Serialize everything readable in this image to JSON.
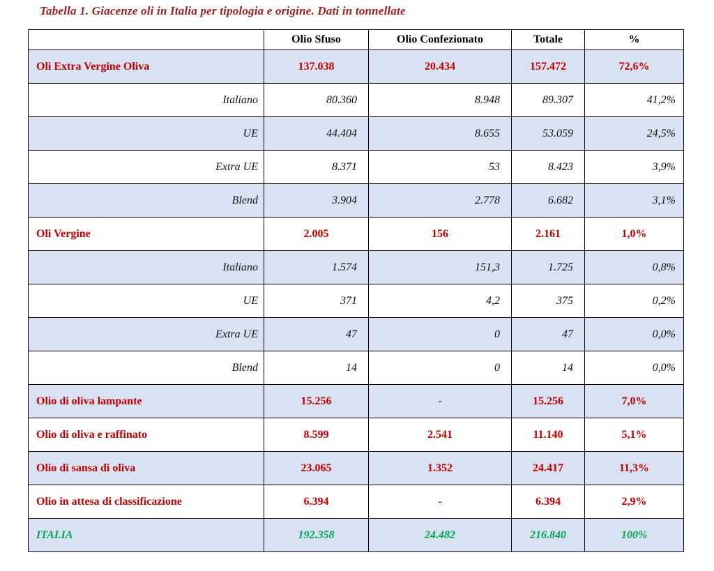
{
  "page": {
    "title": "Tabella 1. Giacenze oli in Italia per tipologia e origine. Dati in tonnellate"
  },
  "colors": {
    "title_red": "#a02020",
    "category_red": "#c00000",
    "total_green": "#00a651",
    "shaded_row_blue": "#d9e2f3",
    "border_black": "#000000"
  },
  "table": {
    "headers": {
      "label": "",
      "sfuso": "Olio Sfuso",
      "confezionato": "Olio Confezionato",
      "totale": "Totale",
      "percent": "%"
    },
    "rows": [
      {
        "type": "main",
        "label": "Oli Extra Vergine Oliva",
        "sfuso": "137.038",
        "confezionato": "20.434",
        "totale": "157.472",
        "percent": "72,6%"
      },
      {
        "type": "sub",
        "label": "Italiano",
        "sfuso": "80.360",
        "confezionato": "8.948",
        "totale": "89.307",
        "percent": "41,2%"
      },
      {
        "type": "sub",
        "label": "UE",
        "sfuso": "44.404",
        "confezionato": "8.655",
        "totale": "53.059",
        "percent": "24,5%"
      },
      {
        "type": "sub",
        "label": "Extra UE",
        "sfuso": "8.371",
        "confezionato": "53",
        "totale": "8.423",
        "percent": "3,9%"
      },
      {
        "type": "sub",
        "label": "Blend",
        "sfuso": "3.904",
        "confezionato": "2.778",
        "totale": "6.682",
        "percent": "3,1%"
      },
      {
        "type": "main",
        "label": "Oli Vergine",
        "sfuso": "2.005",
        "confezionato": "156",
        "totale": "2.161",
        "percent": "1,0%"
      },
      {
        "type": "sub",
        "label": "Italiano",
        "sfuso": "1.574",
        "confezionato": "151,3",
        "totale": "1.725",
        "percent": "0,8%"
      },
      {
        "type": "sub",
        "label": "UE",
        "sfuso": "371",
        "confezionato": "4,2",
        "totale": "375",
        "percent": "0,2%"
      },
      {
        "type": "sub",
        "label": "Extra UE",
        "sfuso": "47",
        "confezionato": "0",
        "totale": "47",
        "percent": "0,0%"
      },
      {
        "type": "sub",
        "label": "Blend",
        "sfuso": "14",
        "confezionato": "0",
        "totale": "14",
        "percent": "0,0%"
      },
      {
        "type": "main",
        "label": "Olio di oliva lampante",
        "sfuso": "15.256",
        "confezionato": "-",
        "totale": "15.256",
        "percent": "7,0%"
      },
      {
        "type": "main",
        "label": "Olio di oliva e raffinato",
        "sfuso": "8.599",
        "confezionato": "2.541",
        "totale": "11.140",
        "percent": "5,1%"
      },
      {
        "type": "main",
        "label": "Olio di sansa di oliva",
        "sfuso": "23.065",
        "confezionato": "1.352",
        "totale": "24.417",
        "percent": "11,3%"
      },
      {
        "type": "main",
        "label": "Olio in attesa di classificazione",
        "sfuso": "6.394",
        "confezionato": "-",
        "totale": "6.394",
        "percent": "2,9%"
      },
      {
        "type": "total",
        "label": "ITALIA",
        "sfuso": "192.358",
        "confezionato": "24.482",
        "totale": "216.840",
        "percent": "100%"
      }
    ]
  }
}
